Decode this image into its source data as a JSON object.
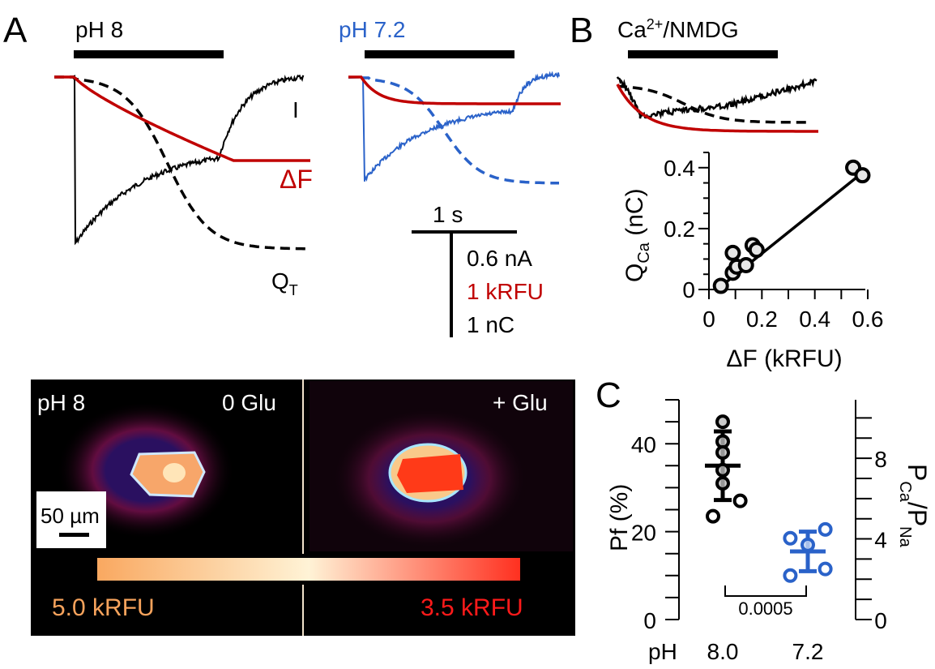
{
  "panel_labels": {
    "a": "A",
    "b": "B",
    "c": "C"
  },
  "colors": {
    "black": "#000000",
    "red": "#c00000",
    "blue": "#2a62c9",
    "orange_label": "#f7a35c",
    "red_label": "#ff1a1a",
    "colorbar_low": "#f9a860",
    "colorbar_mid": "#fff3d6",
    "colorbar_high": "#ff3020"
  },
  "panel_a": {
    "trace_ph8": {
      "label": "pH 8",
      "bar_label": "application",
      "trace_labels": {
        "current": "I",
        "fluorescence": "ΔF",
        "charge": "Q",
        "charge_sub": "T"
      }
    },
    "trace_ph72": {
      "label": "pH 7.2"
    },
    "scale_bar": {
      "time": "1 s",
      "current": "0.6 nA",
      "fluorescence": "1 kRFU",
      "charge": "1 nC"
    }
  },
  "panel_b": {
    "solution_label_main": "Ca",
    "solution_label_sup": "2+",
    "solution_label_rest": "/NMDG"
  },
  "image_panel": {
    "left_ph": "pH 8",
    "left_cond": "0 Glu",
    "right_cond": "+ Glu",
    "scale_label": "50 µm",
    "colorbar_left": "5.0 kRFU",
    "colorbar_right": "3.5 kRFU"
  },
  "chart_data": [
    {
      "type": "scatter",
      "title": "",
      "xlabel": "ΔF (kRFU)",
      "ylabel_main": "Q",
      "ylabel_sub": "Ca",
      "ylabel_unit": " (nC)",
      "xlim": [
        0,
        0.6
      ],
      "ylim": [
        0,
        0.45
      ],
      "xticks": [
        0,
        0.1,
        0.2,
        0.3,
        0.4,
        0.5,
        0.6
      ],
      "xtick_labels": [
        "0",
        "",
        "0.2",
        "",
        "0.4",
        "",
        "0.6"
      ],
      "yticks": [
        0,
        0.05,
        0.1,
        0.15,
        0.2,
        0.25,
        0.3,
        0.35,
        0.4,
        0.45
      ],
      "ytick_labels": [
        "0",
        "",
        "",
        "",
        "0.2",
        "",
        "",
        "",
        "0.4",
        ""
      ],
      "points": [
        {
          "x": 0.045,
          "y": 0.012
        },
        {
          "x": 0.09,
          "y": 0.055
        },
        {
          "x": 0.09,
          "y": 0.12
        },
        {
          "x": 0.105,
          "y": 0.075
        },
        {
          "x": 0.14,
          "y": 0.08
        },
        {
          "x": 0.165,
          "y": 0.145
        },
        {
          "x": 0.18,
          "y": 0.13
        },
        {
          "x": 0.545,
          "y": 0.4
        },
        {
          "x": 0.58,
          "y": 0.375
        }
      ],
      "fit_line": {
        "x0": 0.045,
        "y0": 0.01,
        "x1": 0.575,
        "y1": 0.38
      }
    },
    {
      "type": "scatter",
      "title": "",
      "xlabel": "pH",
      "categories": [
        "8.0",
        "7.2"
      ],
      "ylabel": "Pf (%)",
      "ylabel_right_main": "P",
      "ylabel_right_sub1": "Ca",
      "ylabel_right_mid": "/P",
      "ylabel_right_sub2": "Na",
      "ylim": [
        0,
        50
      ],
      "yticks": [
        0,
        5,
        10,
        15,
        20,
        25,
        30,
        35,
        40,
        45,
        50
      ],
      "ytick_labels": [
        "0",
        "",
        "",
        "",
        "20",
        "",
        "",
        "",
        "40",
        "",
        ""
      ],
      "ylim_right": [
        0,
        10.9
      ],
      "yticks_right": [
        0,
        1,
        2,
        3,
        4,
        5,
        6,
        7,
        8,
        9,
        10
      ],
      "ytick_labels_right": [
        "0",
        "",
        "",
        "",
        "4",
        "",
        "",
        "",
        "8",
        "",
        ""
      ],
      "series": [
        {
          "name": "8.0",
          "color": "#000000",
          "points": [
            {
              "dx": 0.0,
              "y": 45
            },
            {
              "dx": 0.0,
              "y": 40.5
            },
            {
              "dx": 0.0,
              "y": 38
            },
            {
              "dx": 0.0,
              "y": 34
            },
            {
              "dx": 0.0,
              "y": 31
            },
            {
              "dx": 0.9,
              "y": 27
            },
            {
              "dx": -0.5,
              "y": 23.5
            }
          ],
          "mean": 35,
          "sd": 7.8
        },
        {
          "name": "7.2",
          "color": "#2a62c9",
          "points": [
            {
              "dx": -0.9,
              "y": 18.5
            },
            {
              "dx": 0.9,
              "y": 20.5
            },
            {
              "dx": 0.0,
              "y": 17
            },
            {
              "dx": -0.9,
              "y": 10
            },
            {
              "dx": 0.9,
              "y": 11.5
            }
          ],
          "mean": 15.5,
          "sd": 4.5
        }
      ],
      "significance": {
        "label": "0.0005",
        "between": [
          "8.0",
          "7.2"
        ]
      }
    }
  ]
}
